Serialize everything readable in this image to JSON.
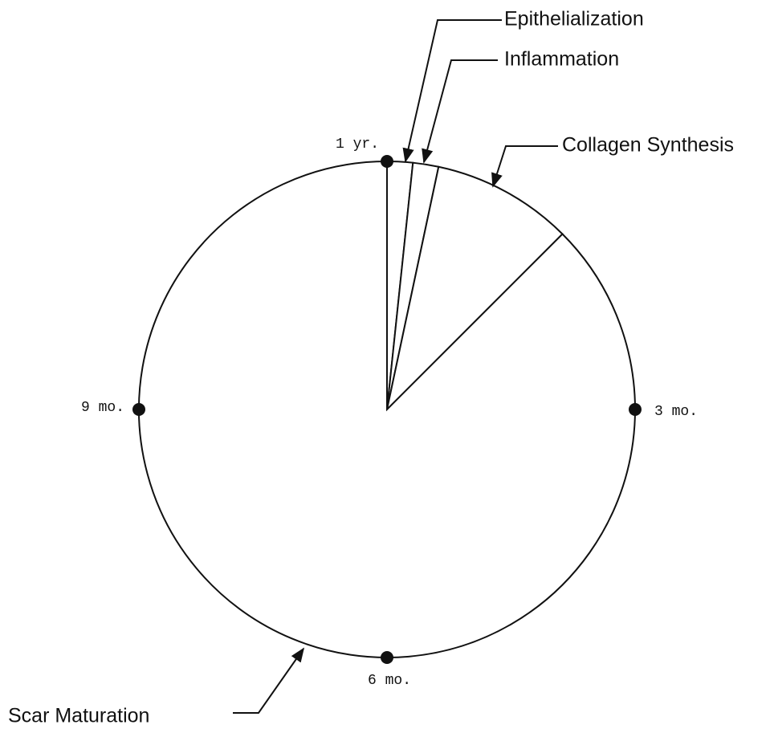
{
  "chart_data": {
    "type": "pie",
    "categories": [
      "Epithelialization",
      "Inflammation",
      "Collagen Synthesis",
      "Scar Maturation"
    ],
    "values": [
      0.2,
      0.2,
      1.1,
      10.5
    ],
    "alim": [
      0,
      12
    ],
    "ticks": [
      {
        "value": 12,
        "label": "1 yr."
      },
      {
        "value": 3,
        "label": "3 mo."
      },
      {
        "value": 6,
        "label": "6 mo."
      },
      {
        "value": 9,
        "label": "9 mo."
      }
    ],
    "color": "#ffffff"
  }
}
